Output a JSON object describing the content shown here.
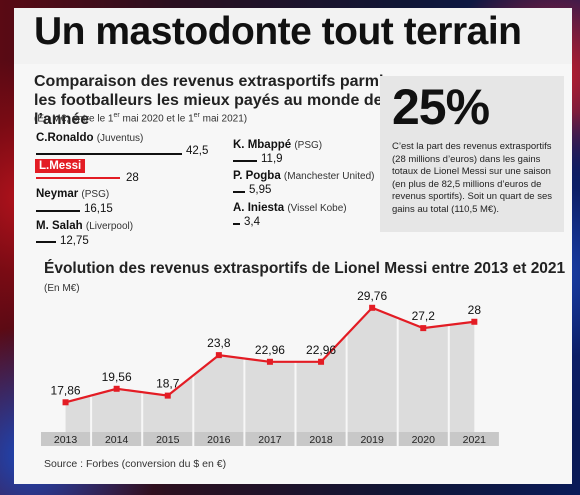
{
  "headline": "Un mastodonte tout terrain",
  "ranking": {
    "title": "Comparaison des revenus extrasportifs parmi les footballeurs les mieux payés au monde de l’année",
    "subtitle_main": "(En M€, entre le 1",
    "subtitle_sup1": "er",
    "subtitle_mid": " mai 2020 et le 1",
    "subtitle_sup2": "er",
    "subtitle_end": " mai 2021)",
    "players": [
      {
        "name": "C.Ronaldo",
        "club": "(Juventus)",
        "value": 42.5,
        "label": "42,5"
      },
      {
        "name": "L.Messi",
        "club": "",
        "value": 28,
        "label": "28"
      },
      {
        "name": "Neymar",
        "club": "(PSG)",
        "value": 16.15,
        "label": "16,15"
      },
      {
        "name": "M. Salah",
        "club": "(Liverpool)",
        "value": 12.75,
        "label": "12,75"
      },
      {
        "name": "K. Mbappé",
        "club": "(PSG)",
        "value": 11.9,
        "label": "11,9"
      },
      {
        "name": "P. Pogba",
        "club": "(Manchester United)",
        "value": 5.95,
        "label": "5,95"
      },
      {
        "name": "A. Iniesta",
        "club": "(Vissel Kobe)",
        "value": 3.4,
        "label": "3,4"
      }
    ]
  },
  "stat_box": {
    "figure": "25%",
    "text": "C’est la part des revenus extrasportifs (28 millions d’euros) dans les gains totaux de Lionel Messi sur une saison (en plus de 82,5 millions d’euros de revenus sportifs). Soit un quart de ses gains au total (110,5 M€)."
  },
  "chart_data": {
    "type": "line",
    "title": "Évolution des revenus extrasportifs de Lionel Messi entre 2013 et 2021",
    "unit": "(En M€)",
    "x": [
      "2013",
      "2014",
      "2015",
      "2016",
      "2017",
      "2018",
      "2019",
      "2020",
      "2021"
    ],
    "values": [
      17.86,
      19.56,
      18.7,
      23.8,
      22.96,
      22.96,
      29.76,
      27.2,
      28
    ],
    "labels": [
      "17,86",
      "19,56",
      "18,7",
      "23,8",
      "22,96",
      "22,96",
      "29,76",
      "27,2",
      "28"
    ],
    "ylim": [
      15,
      32
    ],
    "line_color": "#e31c24"
  },
  "source": "Source : Forbes    (conversion du $ en €)",
  "colors": {
    "accent": "#e31c24",
    "area_fill": "#dcdcdc",
    "axis_band": "#c8c8c8"
  }
}
